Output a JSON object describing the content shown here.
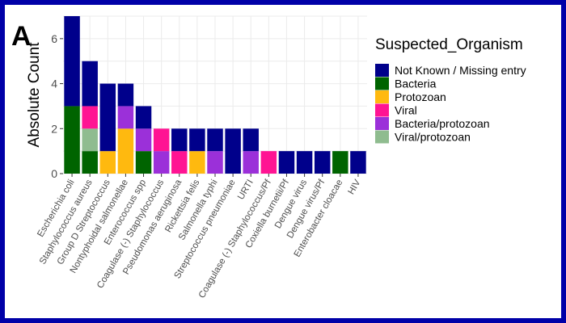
{
  "panel_label": "A",
  "chart_data": {
    "type": "bar",
    "stacked": true,
    "title": "",
    "xlabel": "",
    "ylabel": "Absolute Count",
    "ylim": [
      0,
      7
    ],
    "yticks": [
      0,
      2,
      4,
      6
    ],
    "grid": true,
    "legend": {
      "title": "Suspected_Organism",
      "position": "right"
    },
    "categories": [
      "Escherichia coli",
      "Staphylococcus aureus",
      "Group D Streptococcus",
      "Nontyphoidal salmonellae",
      "Enterococcus spp",
      "Coagulase (-) Staphylococcus",
      "Pseudomonas aeruginosa",
      "Rickettsia felis",
      "Salmonella typhi",
      "Streptococcus pneumoniae",
      "URTI",
      "Coagulase (-) Staphylococcus/Pf",
      "Coxiella burnetii/Pf",
      "Dengue virus",
      "Dengue virus/Pf",
      "Enterobacter cloacae",
      "HIV"
    ],
    "series": [
      {
        "name": "Not Known / Missing entry",
        "color": "#00008B",
        "values": [
          4,
          2,
          3,
          1,
          1,
          0,
          1,
          1,
          1,
          2,
          1,
          0,
          1,
          1,
          1,
          0,
          1
        ]
      },
      {
        "name": "Bacteria",
        "color": "#006400",
        "values": [
          3,
          1,
          0,
          0,
          1,
          0,
          0,
          0,
          0,
          0,
          0,
          0,
          0,
          0,
          0,
          1,
          0
        ]
      },
      {
        "name": "Protozoan",
        "color": "#FFB90F",
        "values": [
          0,
          0,
          1,
          2,
          0,
          0,
          0,
          1,
          0,
          0,
          0,
          0,
          0,
          0,
          0,
          0,
          0
        ]
      },
      {
        "name": "Viral",
        "color": "#FF1493",
        "values": [
          0,
          1,
          0,
          0,
          0,
          1,
          1,
          0,
          0,
          0,
          0,
          1,
          0,
          0,
          0,
          0,
          0
        ]
      },
      {
        "name": "Bacteria/protozoan",
        "color": "#9B30D9",
        "values": [
          0,
          0,
          0,
          1,
          1,
          1,
          0,
          0,
          1,
          0,
          1,
          0,
          0,
          0,
          0,
          0,
          0
        ]
      },
      {
        "name": "Viral/protozoan",
        "color": "#8FBC8F",
        "values": [
          0,
          1,
          0,
          0,
          0,
          0,
          0,
          0,
          0,
          0,
          0,
          0,
          0,
          0,
          0,
          0,
          0
        ]
      }
    ],
    "stack_order": [
      1,
      5,
      2,
      4,
      3,
      0
    ]
  }
}
